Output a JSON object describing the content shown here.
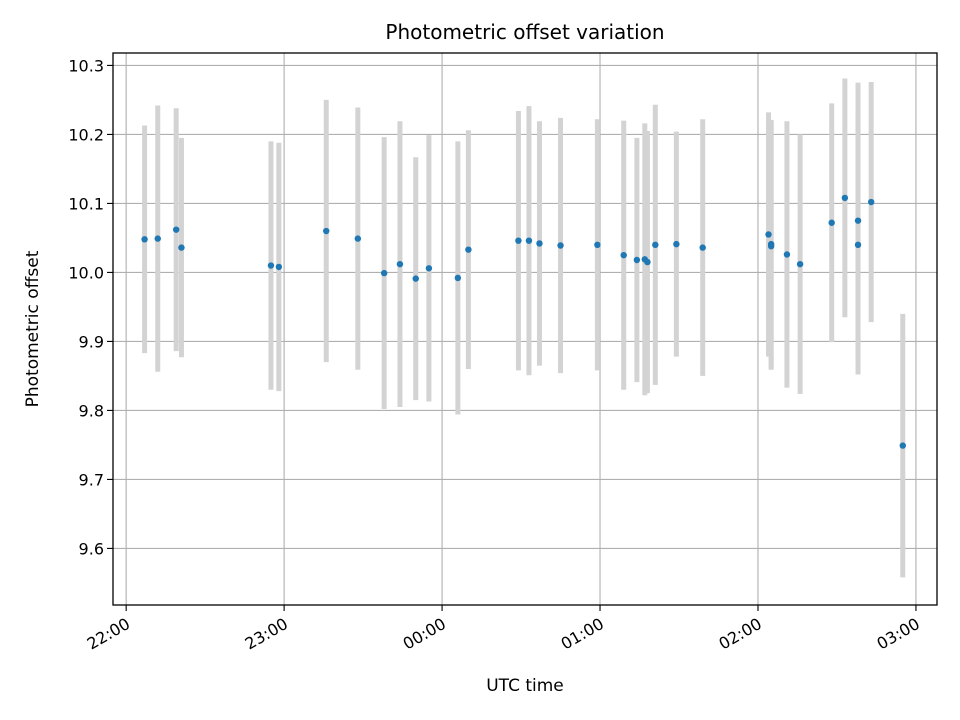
{
  "chart_data": {
    "type": "scatter",
    "title": "Photometric offset variation",
    "xlabel": "UTC time",
    "ylabel": "Photometric offset",
    "x_tick_labels": [
      "22:00",
      "23:00",
      "00:00",
      "01:00",
      "02:00",
      "03:00"
    ],
    "y_tick_labels": [
      "9.6",
      "9.7",
      "9.8",
      "9.9",
      "10.0",
      "10.1",
      "10.2",
      "10.3"
    ],
    "xlim": [
      "21:55",
      "03:08"
    ],
    "ylim": [
      9.518,
      10.318
    ],
    "grid": true,
    "point_color": "#1f77b4",
    "errorbar_color": "#d3d3d3",
    "series": [
      {
        "x": [
          "22:07",
          "22:12",
          "22:19",
          "22:21",
          "22:55",
          "22:58",
          "23:16",
          "23:28",
          "23:38",
          "23:44",
          "23:50",
          "23:55",
          "00:06",
          "00:10",
          "00:29",
          "00:33",
          "00:37",
          "00:45",
          "00:59",
          "01:09",
          "01:14",
          "01:17",
          "01:18",
          "01:21",
          "01:29",
          "01:39",
          "02:04",
          "02:05",
          "02:05",
          "02:11",
          "02:16",
          "02:28",
          "02:33",
          "02:38",
          "02:38",
          "02:43",
          "02:55"
        ],
        "y": [
          10.048,
          10.049,
          10.062,
          10.036,
          10.01,
          10.008,
          10.06,
          10.049,
          9.999,
          10.012,
          9.991,
          10.006,
          9.992,
          10.033,
          10.046,
          10.046,
          10.042,
          10.039,
          10.04,
          10.025,
          10.018,
          10.019,
          10.015,
          10.04,
          10.041,
          10.036,
          10.055,
          10.041,
          10.038,
          10.026,
          10.012,
          10.072,
          10.108,
          10.04,
          10.075,
          10.102,
          9.749
        ],
        "err": [
          0.165,
          0.193,
          0.176,
          0.159,
          0.18,
          0.18,
          0.19,
          0.19,
          0.197,
          0.207,
          0.176,
          0.193,
          0.198,
          0.173,
          0.188,
          0.195,
          0.177,
          0.185,
          0.182,
          0.195,
          0.177,
          0.197,
          0.19,
          0.203,
          0.163,
          0.186,
          0.177,
          0.18,
          0.179,
          0.193,
          0.188,
          0.173,
          0.173,
          0.188,
          0.2,
          0.174,
          0.191
        ]
      }
    ]
  }
}
